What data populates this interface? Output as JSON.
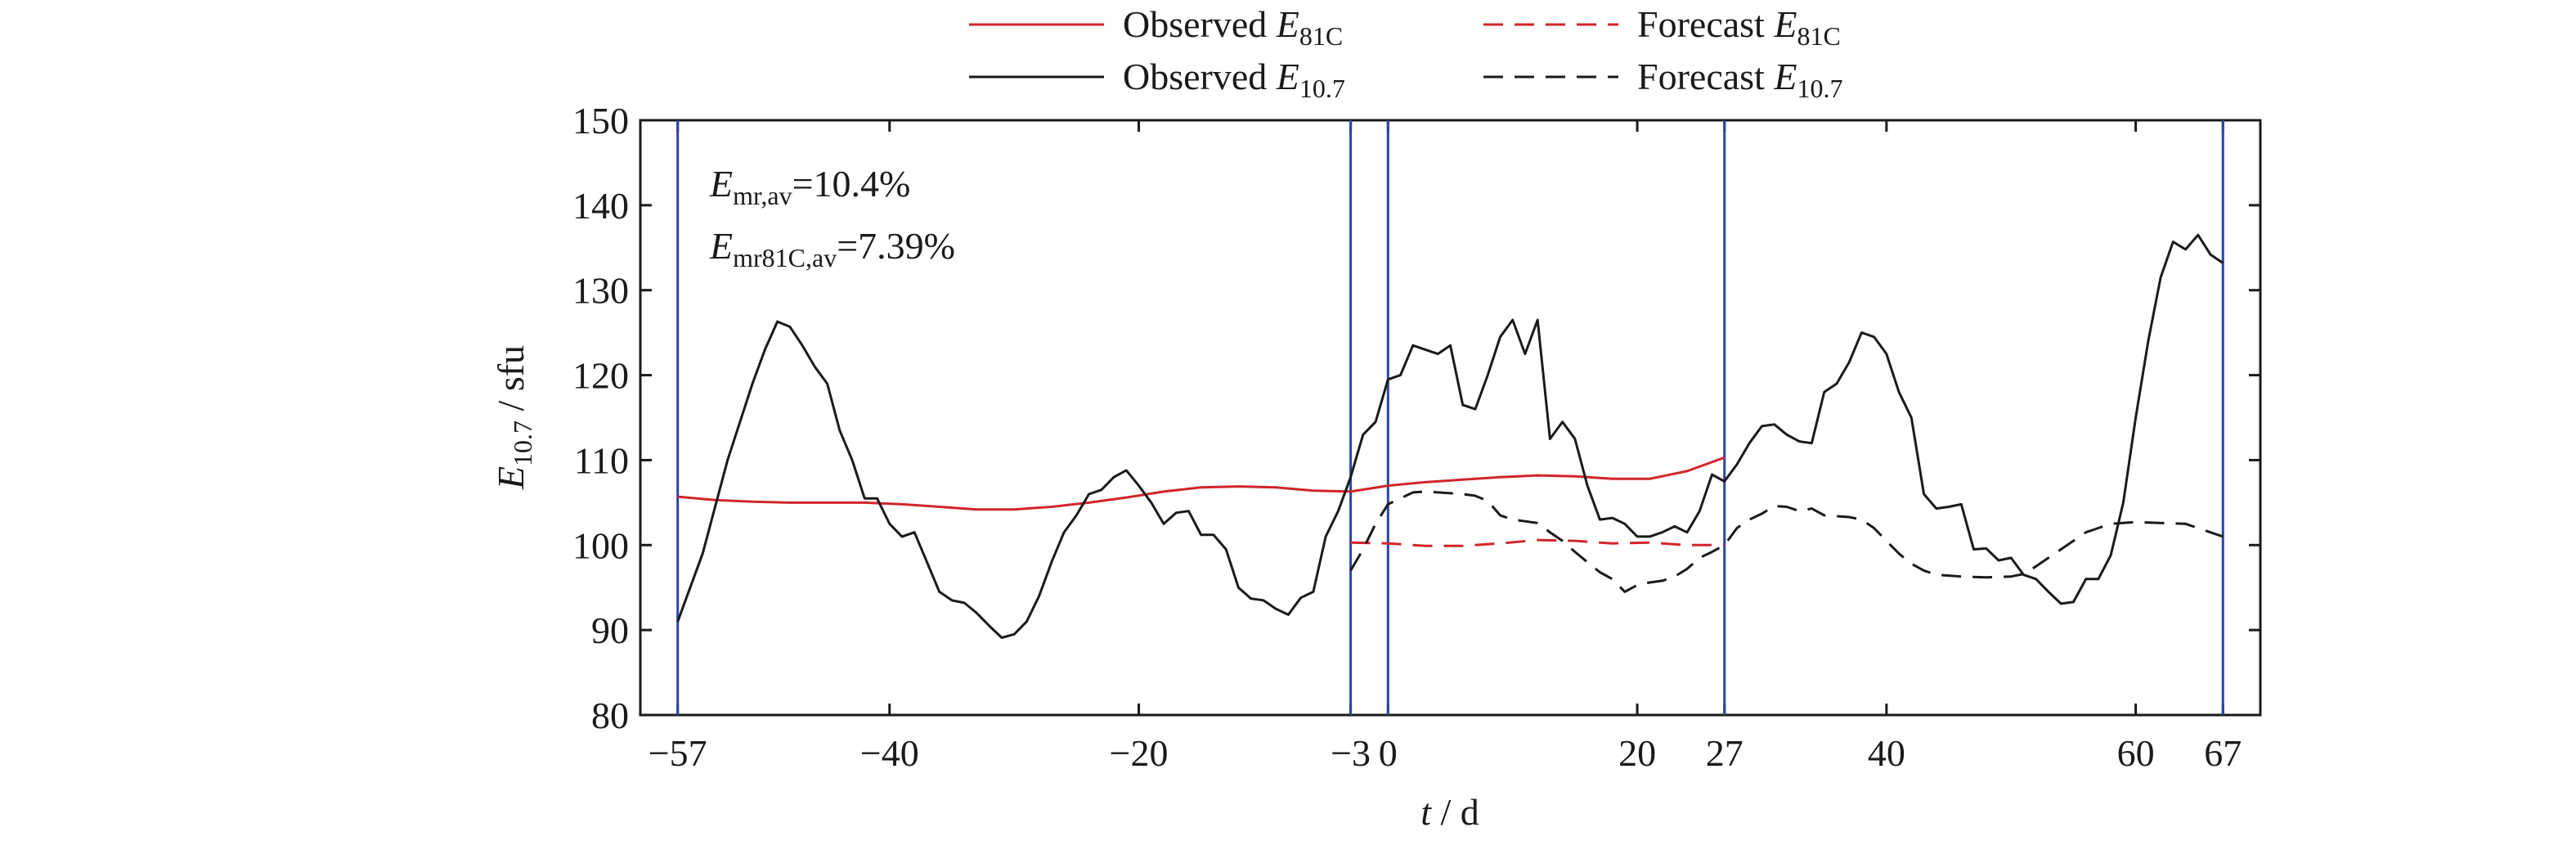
{
  "chart_data": {
    "type": "line",
    "xlabel": "t / d",
    "ylabel": "E10.7 / sfu",
    "annotations": [
      "Emr,av=10.4%",
      "Emr81C,av=7.39%"
    ],
    "xlim": [
      -60,
      70
    ],
    "ylim": [
      80,
      150
    ],
    "xticks": [
      {
        "value": -57,
        "label": "−57"
      },
      {
        "value": -40,
        "label": "−40"
      },
      {
        "value": -20,
        "label": "−20"
      },
      {
        "value": -3,
        "label": "−3"
      },
      0,
      20,
      27,
      40,
      60,
      67
    ],
    "yticks": [
      80,
      90,
      100,
      110,
      120,
      130,
      140,
      150
    ],
    "vlines": [
      -57,
      -3,
      0,
      27,
      67
    ],
    "vline_color": "#2a46a0",
    "series": [
      {
        "name": "Observed E81C",
        "color": "#d0262b",
        "dashed": false,
        "x": [
          -57,
          -54,
          -51,
          -48,
          -45,
          -42,
          -39,
          -36,
          -33,
          -30,
          -27,
          -24,
          -21,
          -18,
          -15,
          -12,
          -9,
          -6,
          -3,
          0,
          3,
          6,
          9,
          12,
          15,
          18,
          21,
          24,
          27
        ],
        "values": [
          105.7,
          105.3,
          105.1,
          105.0,
          105.0,
          105.0,
          104.8,
          104.5,
          104.2,
          104.2,
          104.5,
          105.0,
          105.6,
          106.3,
          106.8,
          106.9,
          106.8,
          106.4,
          106.3,
          107.0,
          107.4,
          107.7,
          108.0,
          108.2,
          108.1,
          107.8,
          107.8,
          108.7,
          110.3
        ]
      },
      {
        "name": "Forecast E81C",
        "color": "#d0262b",
        "dashed": true,
        "x": [
          -3,
          0,
          3,
          6,
          9,
          12,
          15,
          18,
          21,
          24,
          27
        ],
        "values": [
          100.3,
          100.2,
          99.9,
          99.9,
          100.2,
          100.6,
          100.5,
          100.2,
          100.3,
          100.0,
          100.0
        ]
      },
      {
        "name": "Observed E10.7",
        "color": "#1a1a1a",
        "dashed": false,
        "x": [
          -57,
          -55,
          -53,
          -51,
          -50,
          -49,
          -48,
          -47,
          -46,
          -45,
          -44,
          -43,
          -42,
          -41,
          -40,
          -39,
          -38,
          -37,
          -36,
          -35,
          -34,
          -33,
          -32,
          -31,
          -30,
          -29,
          -28,
          -27,
          -26,
          -25,
          -24,
          -23,
          -22,
          -21,
          -20,
          -19,
          -18,
          -17,
          -16,
          -15,
          -14,
          -13,
          -12,
          -11,
          -10,
          -9,
          -8,
          -7,
          -6,
          -5,
          -4,
          -3,
          -2,
          -1,
          0,
          1,
          2,
          3,
          4,
          5,
          6,
          7,
          8,
          9,
          10,
          11,
          12,
          13,
          14,
          15,
          16,
          17,
          18,
          19,
          20,
          21,
          22,
          23,
          24,
          25,
          26,
          27,
          28,
          29,
          30,
          31,
          32,
          33,
          34,
          35,
          36,
          37,
          38,
          39,
          40,
          41,
          42,
          43,
          44,
          45,
          46,
          47,
          48,
          49,
          50,
          51,
          52,
          53,
          54,
          55,
          56,
          57,
          58,
          59,
          60,
          61,
          62,
          63,
          64,
          65,
          66,
          67
        ],
        "values": [
          91,
          99,
          110,
          119,
          123,
          126.3,
          125.7,
          123.5,
          121,
          119,
          113.5,
          110,
          105.5,
          105.5,
          102.5,
          101,
          101.5,
          98,
          94.5,
          93.5,
          93.2,
          92,
          90.5,
          89.1,
          89.5,
          91,
          94,
          98,
          101.5,
          103.5,
          106,
          106.5,
          108,
          108.8,
          107,
          105,
          102.5,
          103.8,
          104,
          101.2,
          101.2,
          99.5,
          95,
          93.7,
          93.5,
          92.5,
          91.8,
          93.8,
          94.5,
          101,
          104,
          108,
          113,
          114.5,
          119.5,
          120,
          123.5,
          123,
          122.5,
          123.5,
          116.5,
          116,
          120,
          124.5,
          126.5,
          122.5,
          126.5,
          112.5,
          114.5,
          112.5,
          107,
          103,
          103.2,
          102.5,
          101,
          101,
          101.5,
          102.2,
          101.5,
          104,
          108.3,
          107.5,
          109.5,
          112,
          114,
          114.2,
          113,
          112.2,
          112,
          118,
          119,
          121.5,
          125,
          124.5,
          122.5,
          118,
          115,
          106,
          104.3,
          104.5,
          104.8,
          99.5,
          99.6,
          98.2,
          98.5,
          96.5,
          96,
          94.5,
          93.1,
          93.3,
          96,
          96,
          98.8,
          105,
          115,
          124,
          131.5,
          135.7,
          134.8,
          136.5,
          134.2,
          133.2
        ]
      },
      {
        "name": "Forecast E10.7",
        "color": "#1a1a1a",
        "dashed": true,
        "x": [
          -3,
          -2,
          -1,
          0,
          1,
          2,
          3,
          4,
          5,
          6,
          7,
          8,
          9,
          10,
          11,
          12,
          13,
          14,
          15,
          16,
          17,
          18,
          19,
          20,
          21,
          22,
          23,
          24,
          25,
          26,
          27,
          28,
          29,
          30,
          31,
          32,
          33,
          34,
          35,
          36,
          37,
          38,
          39,
          40,
          41,
          42,
          43,
          44,
          46,
          48,
          50,
          51,
          52,
          53,
          54,
          55,
          56,
          57,
          58,
          60,
          62,
          64,
          65,
          66,
          67
        ],
        "values": [
          97,
          99.5,
          102.5,
          104.8,
          105.5,
          106.2,
          106.3,
          106.2,
          106.1,
          106,
          105.8,
          105.2,
          103.5,
          103,
          102.8,
          102.6,
          101.5,
          100.5,
          99.2,
          98,
          96.8,
          96,
          94.5,
          95.3,
          95.6,
          95.8,
          96.3,
          97.2,
          98.5,
          99.2,
          100,
          102,
          103,
          103.7,
          104.6,
          104.5,
          104,
          104.3,
          103.5,
          103.4,
          103.3,
          103,
          102,
          100.5,
          99,
          97.8,
          97,
          96.5,
          96.3,
          96.2,
          96.3,
          96.6,
          97.5,
          98.5,
          99.5,
          100.5,
          101.5,
          102,
          102.5,
          102.7,
          102.6,
          102.5,
          102,
          101.5,
          101
        ]
      }
    ]
  }
}
